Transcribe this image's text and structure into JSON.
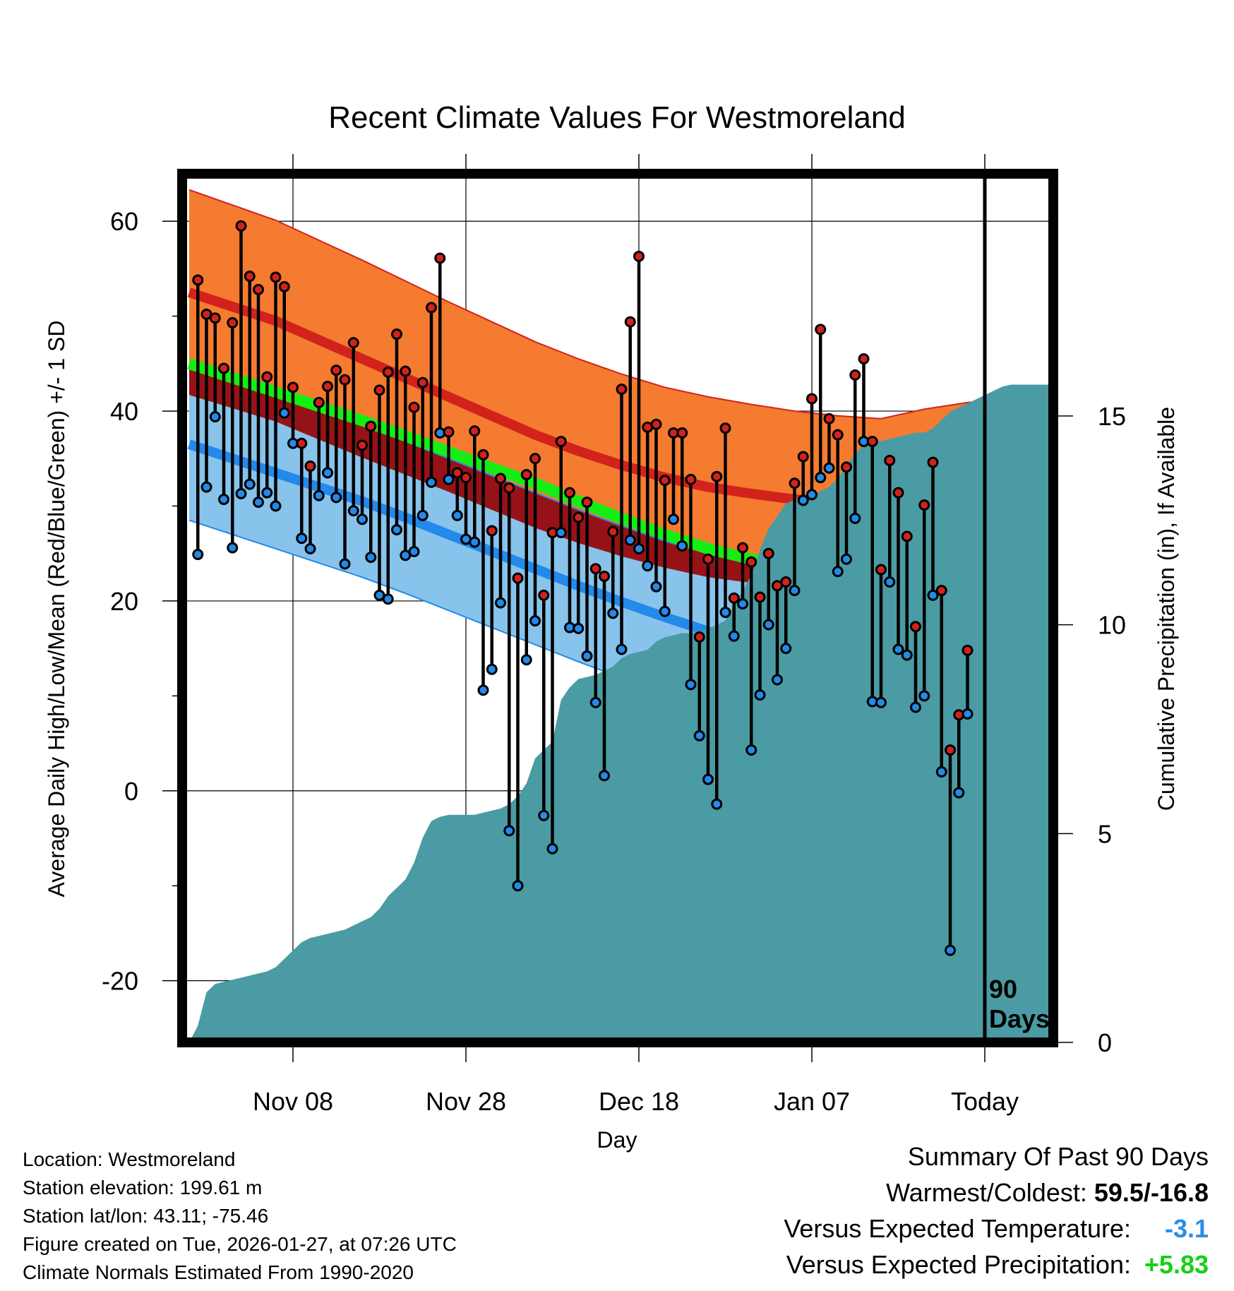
{
  "chart_data": {
    "type": "line",
    "title": "Recent Climate Values For Westmoreland",
    "xlabel": "Day",
    "ylabel": "Average Daily High/Low/Mean (Red/Blue/Green) +/- 1 SD",
    "y2label": "Cumulative Precipitation (in), If Available",
    "ylim": [
      -26.5,
      65
    ],
    "y2lim": [
      0,
      20.8
    ],
    "xlim": [
      -90,
      9
    ],
    "x_ticks": [
      {
        "day": -78,
        "label": "Nov 08"
      },
      {
        "day": -58,
        "label": "Nov 28"
      },
      {
        "day": -38,
        "label": "Dec 18"
      },
      {
        "day": -18,
        "label": "Jan 07"
      },
      {
        "day": 2,
        "label": "Today"
      }
    ],
    "y_ticks": [
      -20,
      0,
      20,
      40,
      60
    ],
    "y2_ticks": [
      0,
      5,
      10,
      15
    ],
    "today_day": 2,
    "today_label": [
      "90",
      "Days"
    ],
    "normals": {
      "days": [
        -90,
        -85,
        -80,
        -75,
        -70,
        -65,
        -60,
        -55,
        -50,
        -45,
        -40,
        -35,
        -30,
        -25,
        -20,
        -15,
        -10,
        -5,
        0,
        5,
        9
      ],
      "high": [
        52.5,
        51,
        49.5,
        47.5,
        45.5,
        43.5,
        41.5,
        39.5,
        37.5,
        35.8,
        34.3,
        33,
        32,
        31.3,
        30.7,
        30.3,
        30.1,
        30,
        30.2,
        30.7,
        31.3
      ],
      "high_sd": [
        10.8,
        10.7,
        10.6,
        10.5,
        10.4,
        10.2,
        10,
        9.9,
        9.8,
        9.7,
        9.6,
        9.5,
        9.5,
        9.4,
        9.3,
        9.2,
        9.1,
        10.2,
        10.7,
        10.6,
        10.5
      ],
      "low": [
        36.5,
        35,
        33.5,
        32,
        30.5,
        28.8,
        27,
        25.2,
        23.4,
        21.6,
        19.9,
        18.3,
        16.8,
        15.5,
        14.3,
        13.5,
        13,
        12.6,
        12.4,
        12.6,
        13
      ],
      "low_sd": [
        8,
        8,
        8,
        8,
        8,
        8,
        8,
        8,
        8,
        8,
        8,
        8,
        8.2,
        9,
        10,
        11.3,
        12.2,
        12.6,
        12.9,
        9.5,
        7.9
      ],
      "mean": [
        45,
        43.5,
        42,
        40.5,
        39,
        37.4,
        35.7,
        34,
        32.4,
        30.5,
        28.7,
        27,
        25.5,
        24.4,
        23.3,
        22.6,
        22.1,
        21.8,
        21.8,
        22.2,
        22.8
      ]
    },
    "series": [
      {
        "name": "Daily High",
        "color": "#d2221c",
        "values": [
          53.8,
          50.2,
          49.8,
          44.5,
          49.3,
          59.5,
          54.2,
          52.8,
          43.6,
          54.1,
          53.1,
          42.5,
          36.6,
          34.2,
          40.9,
          42.6,
          44.3,
          43.3,
          47.2,
          36.4,
          38.4,
          42.2,
          44.1,
          48.1,
          44.2,
          40.4,
          43,
          50.9,
          56.1,
          37.8,
          33.5,
          33,
          37.9,
          35.4,
          27.4,
          32.9,
          31.9,
          22.4,
          33.3,
          35,
          20.6,
          27.2,
          36.8,
          31.4,
          28.8,
          30.4,
          23.4,
          22.6,
          27.3,
          42.3,
          49.4,
          56.3,
          38.3,
          38.6,
          32.7,
          37.7,
          37.7,
          32.8,
          16.2,
          24.4,
          33.1,
          38.2,
          20.3,
          25.6,
          24.1,
          20.4,
          25,
          21.6,
          22,
          32.4,
          35.2,
          41.3,
          48.6,
          39.2,
          37.5,
          34.1,
          43.8,
          45.5,
          36.8,
          23.3,
          34.8,
          31.4,
          26.8,
          17.3,
          30.1,
          34.6,
          21.1,
          4.3,
          8,
          14.8
        ]
      },
      {
        "name": "Daily Low",
        "color": "#2389ea",
        "values": [
          24.9,
          32,
          39.4,
          30.7,
          25.6,
          31.3,
          32.3,
          30.4,
          31.4,
          30,
          39.8,
          36.6,
          26.6,
          25.5,
          31.1,
          33.5,
          30.9,
          23.9,
          29.5,
          28.6,
          24.6,
          20.6,
          20.2,
          27.5,
          24.8,
          25.2,
          29,
          32.5,
          37.7,
          32.8,
          29,
          26.5,
          26.2,
          10.6,
          12.8,
          19.8,
          -4.2,
          -10,
          13.8,
          17.9,
          -2.6,
          -6.1,
          27.2,
          17.2,
          17.1,
          14.2,
          9.3,
          1.6,
          18.7,
          14.9,
          26.4,
          25.5,
          23.7,
          21.5,
          18.9,
          28.6,
          25.8,
          11.2,
          5.8,
          1.2,
          -1.4,
          18.8,
          16.3,
          19.7,
          4.3,
          10.1,
          17.5,
          11.7,
          15,
          21.1,
          30.6,
          31.2,
          33,
          34,
          23.1,
          24.4,
          28.7,
          36.8,
          9.4,
          9.3,
          22,
          14.9,
          14.3,
          8.8,
          10,
          20.6,
          2,
          -16.8,
          -0.2,
          8.1
        ]
      },
      {
        "name": "Cumulative Precipitation (in)",
        "color": "#4a9ba3",
        "values": [
          0,
          0.4,
          1.2,
          1.4,
          1.45,
          1.5,
          1.55,
          1.6,
          1.65,
          1.7,
          1.8,
          2,
          2.2,
          2.4,
          2.5,
          2.55,
          2.6,
          2.65,
          2.7,
          2.8,
          2.9,
          3,
          3.2,
          3.5,
          3.7,
          3.9,
          4.3,
          4.9,
          5.3,
          5.4,
          5.45,
          5.45,
          5.45,
          5.45,
          5.5,
          5.55,
          5.6,
          5.7,
          5.9,
          6.2,
          6.8,
          7,
          7.2,
          8.2,
          8.5,
          8.7,
          8.75,
          8.8,
          8.9,
          9,
          9.2,
          9.3,
          9.35,
          9.4,
          9.6,
          9.7,
          9.75,
          9.8,
          9.8,
          9.85,
          9.9,
          10,
          10.1,
          10.5,
          10.8,
          11.2,
          11.8,
          12.3,
          12.6,
          12.9,
          13,
          13.1,
          13.1,
          13.2,
          13.3,
          13.5,
          13.8,
          14.1,
          14.3,
          14.4,
          14.4,
          14.45,
          14.5,
          14.55,
          14.6,
          14.6,
          14.7,
          14.9,
          15.1,
          15.2,
          15.3,
          15.4,
          15.5,
          15.6,
          15.7,
          15.75,
          15.75,
          15.75,
          15.75,
          15.75,
          15.75
        ]
      }
    ]
  },
  "info": {
    "location": "Location: Westmoreland",
    "elevation": "Station elevation: 199.61 m",
    "latlon": "Station lat/lon: 43.11; -75.46",
    "created": "Figure created on Tue, 2026-01-27, at 07:26 UTC",
    "normals": "Climate Normals Estimated From 1990-2020"
  },
  "summary": {
    "heading": "Summary Of Past 90 Days",
    "warmest_coldest_label": "Warmest/Coldest:",
    "warmest_coldest_value": "59.5/-16.8",
    "temp_label": "Versus Expected Temperature:",
    "temp_value": "-3.1",
    "precip_label": "Versus Expected Precipitation:",
    "precip_value": "+5.83",
    "colors": {
      "temp": "#2a8de6",
      "precip": "#14d014"
    }
  }
}
